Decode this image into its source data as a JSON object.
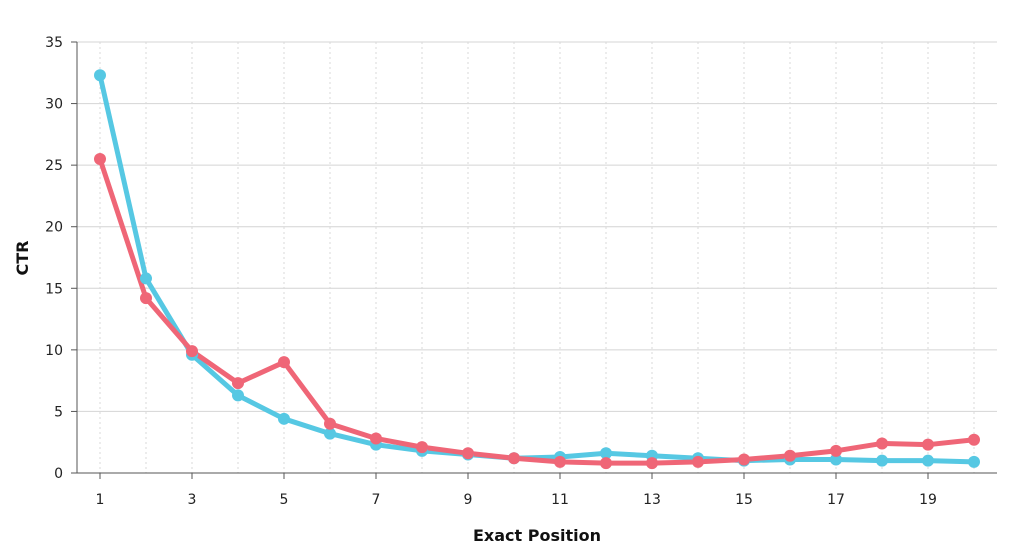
{
  "chart_data": {
    "type": "line",
    "xlabel": "Exact Position",
    "ylabel": "CTR",
    "x": [
      1,
      2,
      3,
      4,
      5,
      6,
      7,
      8,
      9,
      10,
      11,
      12,
      13,
      14,
      15,
      16,
      17,
      18,
      19,
      20
    ],
    "x_ticks": [
      1,
      3,
      5,
      7,
      9,
      11,
      13,
      15,
      17,
      19
    ],
    "xlim": [
      0.5,
      20.5
    ],
    "ylim": [
      0,
      35
    ],
    "y_ticks": [
      0,
      5,
      10,
      15,
      20,
      25,
      30,
      35
    ],
    "grid": true,
    "series": [
      {
        "color": "#56c8e3",
        "values": [
          32.3,
          15.8,
          9.6,
          6.3,
          4.4,
          3.2,
          2.3,
          1.8,
          1.5,
          1.2,
          1.3,
          1.6,
          1.4,
          1.2,
          1.0,
          1.1,
          1.1,
          1.0,
          1.0,
          0.9
        ]
      },
      {
        "color": "#ef6677",
        "values": [
          25.5,
          14.2,
          9.9,
          7.3,
          9.0,
          4.0,
          2.8,
          2.1,
          1.6,
          1.2,
          0.9,
          0.8,
          0.8,
          0.9,
          1.1,
          1.4,
          1.8,
          2.4,
          2.3,
          2.7
        ]
      }
    ]
  }
}
